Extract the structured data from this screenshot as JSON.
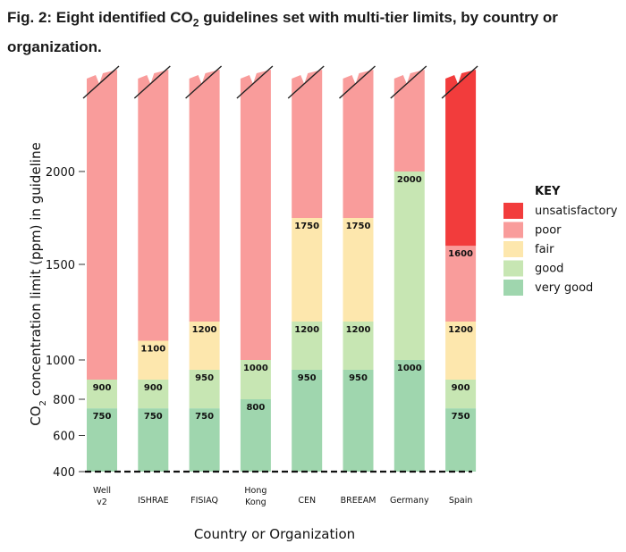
{
  "figure": {
    "title_prefix": "Fig. 2: Eight identified CO",
    "title_sub": "2",
    "title_suffix": " guidelines set with multi-tier limits, by country or organization."
  },
  "chart_data": {
    "type": "bar",
    "stacked": true,
    "xlabel": "Country or Organization",
    "ylabel_prefix": "CO",
    "ylabel_sub": "2",
    "ylabel_suffix": " concentration limit (ppm) in guideline",
    "y_ticks": [
      400,
      600,
      800,
      1000,
      1500,
      2000
    ],
    "y_axis_note": "non-linear scale; bars truncated at top with break marks",
    "baseline": 400,
    "categories": [
      {
        "name": "Well v2",
        "tiers": [
          {
            "level": "very good",
            "upper": 750
          },
          {
            "level": "good",
            "upper": 900
          },
          {
            "level": "poor",
            "upper": null
          }
        ],
        "labels": [
          "750",
          "900"
        ]
      },
      {
        "name": "ISHRAE",
        "tiers": [
          {
            "level": "very good",
            "upper": 750
          },
          {
            "level": "good",
            "upper": 900
          },
          {
            "level": "fair",
            "upper": 1100
          },
          {
            "level": "poor",
            "upper": null
          }
        ],
        "labels": [
          "750",
          "900",
          "1100"
        ]
      },
      {
        "name": "FISIAQ",
        "tiers": [
          {
            "level": "very good",
            "upper": 750
          },
          {
            "level": "good",
            "upper": 950
          },
          {
            "level": "fair",
            "upper": 1200
          },
          {
            "level": "poor",
            "upper": null
          }
        ],
        "labels": [
          "750",
          "950",
          "1200"
        ]
      },
      {
        "name": "Hong Kong",
        "tiers": [
          {
            "level": "very good",
            "upper": 800
          },
          {
            "level": "good",
            "upper": 1000
          },
          {
            "level": "poor",
            "upper": null
          }
        ],
        "labels": [
          "800",
          "1000"
        ]
      },
      {
        "name": "CEN",
        "tiers": [
          {
            "level": "very good",
            "upper": 950
          },
          {
            "level": "good",
            "upper": 1200
          },
          {
            "level": "fair",
            "upper": 1750
          },
          {
            "level": "poor",
            "upper": null
          }
        ],
        "labels": [
          "950",
          "1200",
          "1750"
        ]
      },
      {
        "name": "BREEAM",
        "tiers": [
          {
            "level": "very good",
            "upper": 950
          },
          {
            "level": "good",
            "upper": 1200
          },
          {
            "level": "fair",
            "upper": 1750
          },
          {
            "level": "poor",
            "upper": null
          }
        ],
        "labels": [
          "950",
          "1200",
          "1750"
        ]
      },
      {
        "name": "Germany",
        "tiers": [
          {
            "level": "very good",
            "upper": 1000
          },
          {
            "level": "good",
            "upper": 2000
          },
          {
            "level": "poor",
            "upper": null
          }
        ],
        "labels": [
          "1000",
          "2000"
        ]
      },
      {
        "name": "Spain",
        "tiers": [
          {
            "level": "very good",
            "upper": 750
          },
          {
            "level": "good",
            "upper": 900
          },
          {
            "level": "fair",
            "upper": 1200
          },
          {
            "level": "poor",
            "upper": 1600
          },
          {
            "level": "unsatisfactory",
            "upper": null
          }
        ],
        "labels": [
          "750",
          "900",
          "1200",
          "1600"
        ]
      }
    ],
    "legend": {
      "title": "KEY",
      "placement": "right",
      "items": [
        {
          "level": "unsatisfactory",
          "label": "unsatisfactory",
          "color": "#f23c3c"
        },
        {
          "level": "poor",
          "label": "poor",
          "color": "#f99c9b"
        },
        {
          "level": "fair",
          "label": "fair",
          "color": "#fde7ad"
        },
        {
          "level": "good",
          "label": "good",
          "color": "#c7e6b3"
        },
        {
          "level": "very good",
          "label": "very good",
          "color": "#9fd6ae"
        }
      ]
    }
  }
}
